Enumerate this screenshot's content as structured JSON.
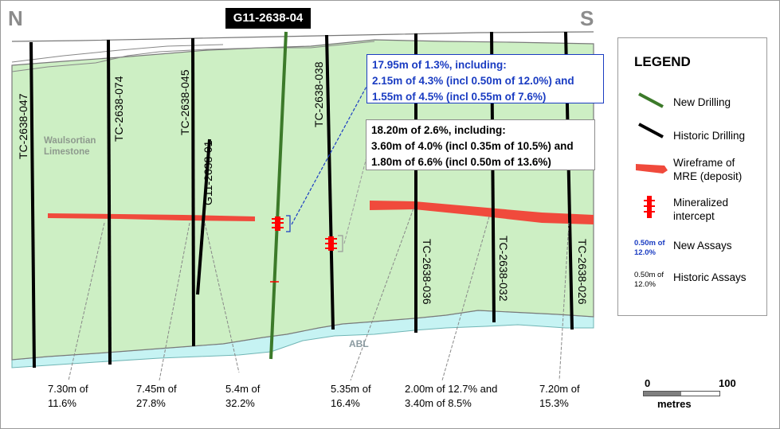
{
  "orientation": {
    "left": "N",
    "right": "S"
  },
  "new_hole": "G11-2638-04",
  "holes": {
    "tc_047": "TC-2638-047",
    "tc_074": "TC-2638-074",
    "tc_045": "TC-2638-045",
    "g11_01": "G11-2638-01",
    "tc_038": "TC-2638-038",
    "tc_036": "TC-2638-036",
    "tc_032": "TC-2638-032",
    "tc_026": "TC-2638-026"
  },
  "units": {
    "waulsortian": [
      "Waulsortian",
      "Limestone"
    ],
    "abl": "ABL"
  },
  "callouts": {
    "new": [
      "17.95m of 1.3%, including:",
      "2.15m of 4.3% (incl 0.50m of 12.0%) and",
      "1.55m of 4.5% (incl 0.55m of 7.6%)"
    ],
    "historic": [
      "18.20m of 2.6%, including:",
      "3.60m of 4.0% (incl 0.35m of 10.5%) and",
      "1.80m of 6.6% (incl 0.50m of 13.6%)"
    ]
  },
  "assays": [
    [
      "7.30m of",
      "11.6%"
    ],
    [
      "7.45m of",
      "27.8%"
    ],
    [
      "5.4m of",
      "32.2%"
    ],
    [
      "5.35m of",
      "16.4%"
    ],
    [
      "2.00m of 12.7% and",
      "3.40m of 8.5%"
    ],
    [
      "7.20m of",
      "15.3%"
    ]
  ],
  "legend": {
    "title": "LEGEND",
    "items": {
      "new_drilling": "New Drilling",
      "historic_drilling": "Historic Drilling",
      "wireframe": [
        "Wireframe of",
        "MRE (deposit)"
      ],
      "mineralized": [
        "Mineralized",
        "intercept"
      ],
      "new_assays": "New Assays",
      "new_assays_sample": [
        "0.50m of",
        "12.0%"
      ],
      "historic_assays": "Historic Assays",
      "historic_assays_sample": [
        "0.50m of",
        "12.0%"
      ]
    }
  },
  "scale": {
    "start": "0",
    "end": "100",
    "unit": "metres"
  },
  "colors": {
    "limestone": "#cdefc4",
    "abl": "#c6f3f3",
    "new_drilling": "#3c7a2a",
    "historic_drilling": "#000000",
    "wireframe": "#f04a3c",
    "intercept": "#ff0000",
    "new_text": "#1a3cc2"
  }
}
